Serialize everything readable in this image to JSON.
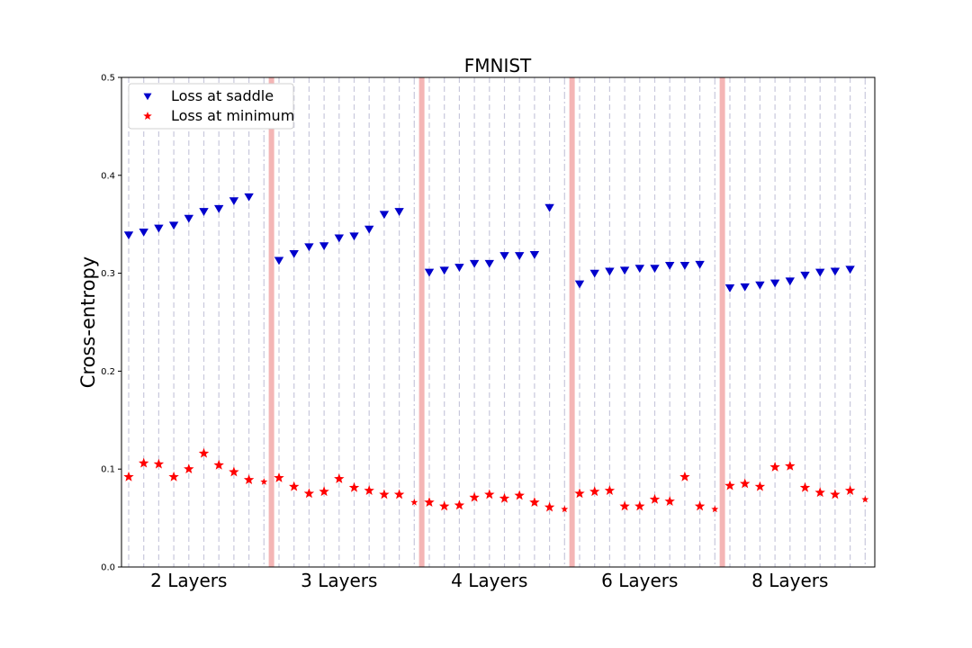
{
  "chart_data": {
    "type": "scatter",
    "title": "FMNIST",
    "ylabel": "Cross-entropy",
    "xlabel": "",
    "ylim": [
      0.0,
      0.5
    ],
    "yticks": [
      "0.0",
      "0.1",
      "0.2",
      "0.3",
      "0.4",
      "0.5"
    ],
    "grid": false,
    "legend_position": "top-left",
    "colors": {
      "saddle": "#0000cc",
      "minimum": "#ff0000",
      "separator": "#f4b5b5",
      "connector": "#c8c8dc"
    },
    "series": [
      {
        "name": "Loss at saddle",
        "marker": "triangle-down"
      },
      {
        "name": "Loss at minimum",
        "marker": "star"
      }
    ],
    "groups": [
      {
        "label": "2 Layers",
        "saddle": [
          0.339,
          0.342,
          0.346,
          0.349,
          0.356,
          0.363,
          0.366,
          0.374,
          0.378,
          null
        ],
        "minimum": [
          0.092,
          0.106,
          0.105,
          0.092,
          0.1,
          0.116,
          0.104,
          0.097,
          0.089,
          0.087
        ]
      },
      {
        "label": "3 Layers",
        "saddle": [
          0.313,
          0.32,
          0.327,
          0.328,
          0.336,
          0.338,
          0.345,
          0.36,
          0.363,
          null
        ],
        "minimum": [
          0.091,
          0.082,
          0.075,
          0.077,
          0.09,
          0.081,
          0.078,
          0.074,
          0.074,
          0.066
        ]
      },
      {
        "label": "4 Layers",
        "saddle": [
          0.301,
          0.303,
          0.306,
          0.31,
          0.31,
          0.318,
          0.318,
          0.319,
          0.367,
          null
        ],
        "minimum": [
          0.066,
          0.062,
          0.063,
          0.071,
          0.074,
          0.07,
          0.073,
          0.066,
          0.061,
          0.059
        ]
      },
      {
        "label": "6 Layers",
        "saddle": [
          0.289,
          0.3,
          0.302,
          0.303,
          0.305,
          0.305,
          0.308,
          0.308,
          0.309,
          null
        ],
        "minimum": [
          0.075,
          0.077,
          0.078,
          0.062,
          0.062,
          0.069,
          0.067,
          0.092,
          0.062,
          0.059
        ]
      },
      {
        "label": "8 Layers",
        "saddle": [
          0.285,
          0.286,
          0.288,
          0.29,
          0.292,
          0.298,
          0.301,
          0.302,
          0.304,
          null
        ],
        "minimum": [
          0.083,
          0.085,
          0.082,
          0.102,
          0.103,
          0.081,
          0.076,
          0.074,
          0.078,
          0.069
        ]
      }
    ]
  }
}
